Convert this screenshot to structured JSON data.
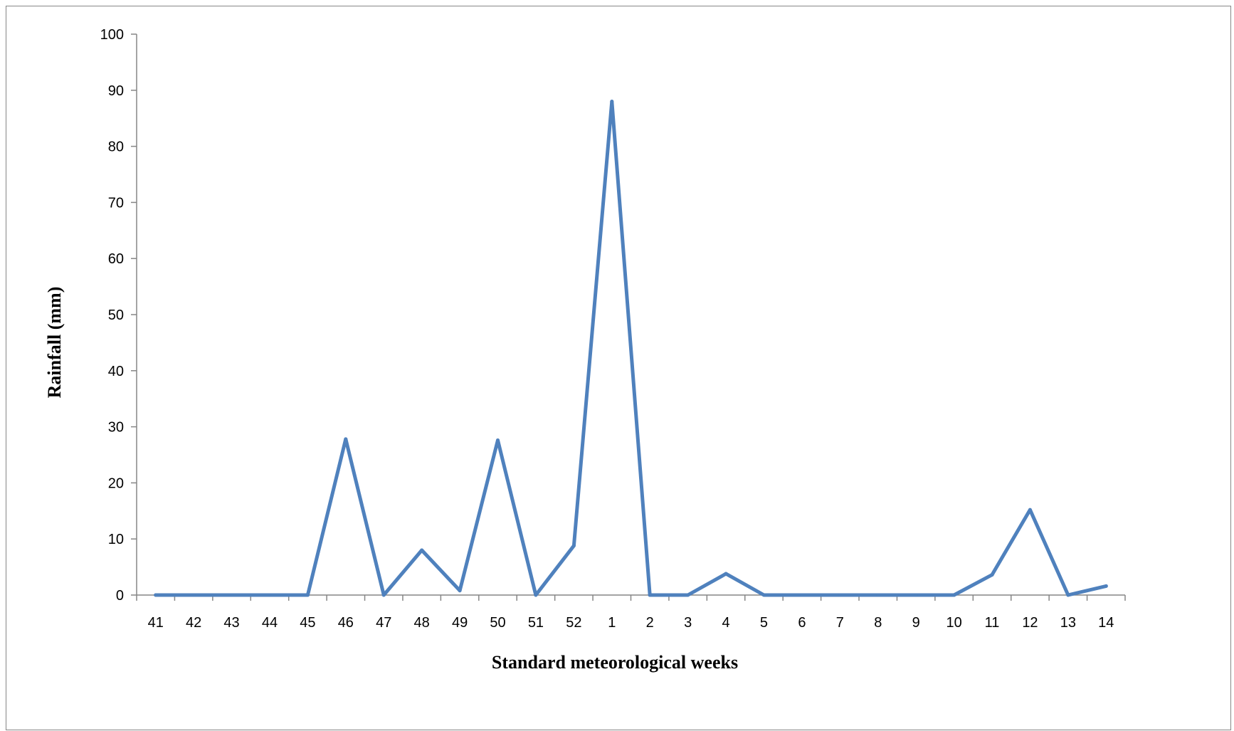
{
  "chart_data": {
    "type": "line",
    "title": "",
    "xlabel": "Standard meteorological weeks",
    "ylabel": "Rainfall (mm)",
    "ylim": [
      0,
      100
    ],
    "yticks": [
      "0",
      "10",
      "20",
      "30",
      "40",
      "50",
      "60",
      "70",
      "80",
      "90",
      "100"
    ],
    "categories": [
      "41",
      "42",
      "43",
      "44",
      "45",
      "46",
      "47",
      "48",
      "49",
      "50",
      "51",
      "52",
      "1",
      "2",
      "3",
      "4",
      "5",
      "6",
      "7",
      "8",
      "9",
      "10",
      "11",
      "12",
      "13",
      "14"
    ],
    "series": [
      {
        "values": [
          0,
          0,
          0,
          0,
          0,
          27.8,
          0,
          8.0,
          0.8,
          27.6,
          0,
          8.8,
          88.0,
          0,
          0,
          3.8,
          0,
          0,
          0,
          0,
          0,
          0,
          3.6,
          15.2,
          0,
          1.6
        ],
        "color": "#4f81bd"
      }
    ],
    "grid": false,
    "legend": "none"
  }
}
